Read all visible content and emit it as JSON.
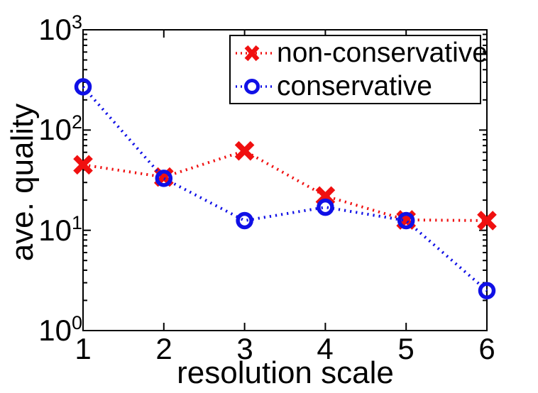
{
  "figure": {
    "background": "#ffffff",
    "axis_color": "#000000"
  },
  "chart_data": {
    "type": "line",
    "title": "",
    "xlabel": "resolution scale",
    "ylabel": "ave. quality",
    "yscale": "log",
    "xlim": [
      1,
      6
    ],
    "ylim": [
      1,
      1000
    ],
    "grid": false,
    "x": [
      1,
      2,
      3,
      4,
      5,
      6
    ],
    "x_tick_labels": [
      "1",
      "2",
      "3",
      "4",
      "5",
      "6"
    ],
    "y_tick_values": [
      1,
      10,
      100,
      1000
    ],
    "y_ticks": [
      {
        "base": "10",
        "exp": "0"
      },
      {
        "base": "10",
        "exp": "1"
      },
      {
        "base": "10",
        "exp": "2"
      },
      {
        "base": "10",
        "exp": "3"
      }
    ],
    "legend_position": "top-right inside",
    "series": [
      {
        "name": "non-conservative",
        "color": "#f01010",
        "marker": "x",
        "linestyle": "dotted",
        "values": [
          45,
          34,
          62,
          22,
          12.7,
          12.5
        ]
      },
      {
        "name": "conservative",
        "color": "#1010e6",
        "marker": "o",
        "linestyle": "dotted",
        "values": [
          270,
          33,
          12.5,
          17,
          12.5,
          2.5
        ]
      }
    ]
  }
}
